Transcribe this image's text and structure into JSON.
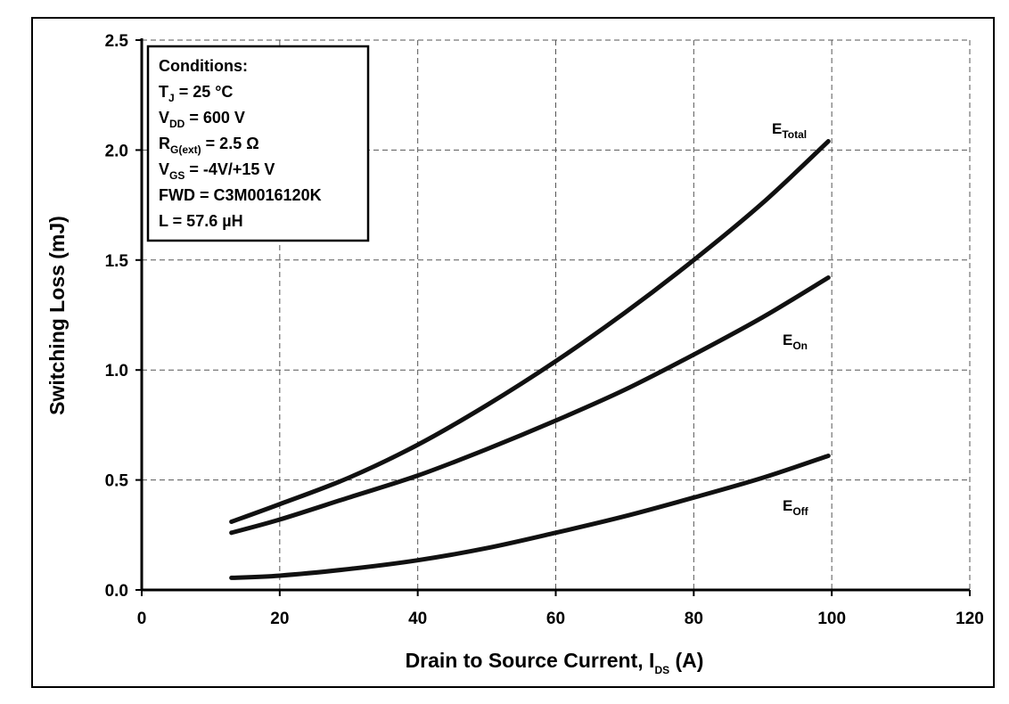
{
  "chart_data": {
    "type": "line",
    "title": "",
    "xlabel": {
      "main": "Drain to Source Current, I",
      "sub": "DS",
      "suffix": " (A)"
    },
    "ylabel": "Switching Loss (mJ)",
    "xlim": [
      0,
      120
    ],
    "ylim": [
      0,
      2.5
    ],
    "x_ticks": [
      0,
      20,
      40,
      60,
      80,
      100,
      120
    ],
    "x_tick_labels": [
      "0",
      "20",
      "40",
      "60",
      "80",
      "100",
      "120"
    ],
    "y_ticks": [
      0,
      0.5,
      1.0,
      1.5,
      2.0,
      2.5
    ],
    "y_tick_labels": [
      "0.0",
      "0.5",
      "1.0",
      "1.5",
      "2.0",
      "2.5"
    ],
    "grid": true,
    "series": [
      {
        "name": "E_Total",
        "label_main": "E",
        "label_sub": "Total",
        "x": [
          13,
          20,
          30,
          40,
          50,
          60,
          70,
          80,
          90,
          99.5
        ],
        "values": [
          0.31,
          0.39,
          0.51,
          0.66,
          0.84,
          1.04,
          1.26,
          1.5,
          1.76,
          2.04
        ]
      },
      {
        "name": "E_On",
        "label_main": "E",
        "label_sub": "On",
        "x": [
          13,
          20,
          30,
          40,
          50,
          60,
          70,
          80,
          90,
          99.5
        ],
        "values": [
          0.26,
          0.32,
          0.42,
          0.52,
          0.64,
          0.77,
          0.91,
          1.07,
          1.24,
          1.42
        ]
      },
      {
        "name": "E_Off",
        "label_main": "E",
        "label_sub": "Off",
        "x": [
          13,
          20,
          30,
          40,
          50,
          60,
          70,
          80,
          90,
          99.5
        ],
        "values": [
          0.055,
          0.065,
          0.095,
          0.135,
          0.19,
          0.26,
          0.335,
          0.42,
          0.51,
          0.61
        ]
      }
    ],
    "conditions": [
      {
        "main": "Conditions:",
        "sub": "",
        "rest": ""
      },
      {
        "main": "T",
        "sub": "J",
        "rest": " = 25 °C"
      },
      {
        "main": "V",
        "sub": "DD",
        "rest": " = 600 V"
      },
      {
        "main": "R",
        "sub": "G(ext)",
        "rest": " = 2.5 Ω"
      },
      {
        "main": "V",
        "sub": "GS",
        "rest": " = -4V/+15  V"
      },
      {
        "main": "FWD = C3M0016120K",
        "sub": "",
        "rest": ""
      },
      {
        "main": "L = 57.6 µH",
        "sub": "",
        "rest": ""
      }
    ]
  }
}
